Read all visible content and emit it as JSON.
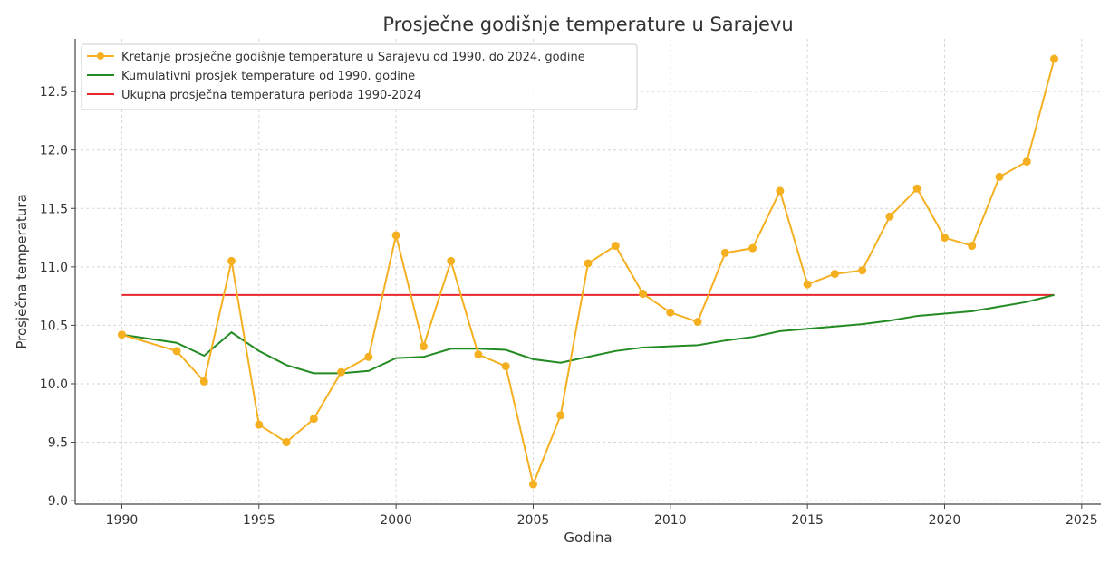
{
  "chart_data": {
    "type": "line",
    "title": "Prosječne godišnje temperature u Sarajevu",
    "xlabel": "Godina",
    "ylabel": "Prosječna temperatura",
    "xlim": [
      1988.3,
      2025.7
    ],
    "ylim": [
      8.97,
      12.95
    ],
    "xticks": [
      "1990",
      "1995",
      "2000",
      "2005",
      "2010",
      "2015",
      "2020",
      "2025"
    ],
    "yticks": [
      "9.0",
      "9.5",
      "10.0",
      "10.5",
      "11.0",
      "11.5",
      "12.0",
      "12.5"
    ],
    "grid": true,
    "legend_position": "top-left",
    "x": [
      1990,
      1992,
      1993,
      1994,
      1995,
      1996,
      1997,
      1998,
      1999,
      2000,
      2001,
      2002,
      2003,
      2004,
      2005,
      2006,
      2007,
      2008,
      2009,
      2010,
      2011,
      2012,
      2013,
      2014,
      2015,
      2016,
      2017,
      2018,
      2019,
      2020,
      2021,
      2022,
      2023,
      2024
    ],
    "series": [
      {
        "name": "Kretanje prosječne godišnje temperature u Sarajevu od 1990. do 2024. godine",
        "color": "#f5b021",
        "markers": true,
        "values": [
          10.42,
          10.28,
          10.02,
          11.05,
          9.65,
          9.5,
          9.7,
          10.1,
          10.23,
          11.27,
          10.32,
          11.05,
          10.25,
          10.15,
          9.14,
          9.73,
          11.03,
          11.18,
          10.77,
          10.61,
          10.53,
          11.12,
          11.16,
          11.65,
          10.85,
          10.94,
          10.97,
          11.43,
          11.67,
          11.25,
          11.18,
          11.77,
          11.9,
          12.78
        ]
      },
      {
        "name": "Kumulativni prosjek temperature od 1990. godine",
        "color": "#228b22",
        "markers": false,
        "values": [
          10.42,
          10.35,
          10.24,
          10.44,
          10.28,
          10.16,
          10.09,
          10.09,
          10.11,
          10.22,
          10.23,
          10.3,
          10.3,
          10.29,
          10.21,
          10.18,
          10.23,
          10.28,
          10.31,
          10.32,
          10.33,
          10.37,
          10.4,
          10.45,
          10.47,
          10.49,
          10.51,
          10.54,
          10.58,
          10.6,
          10.62,
          10.66,
          10.7,
          10.76
        ]
      },
      {
        "name": "Ukupna prosječna temperatura perioda 1990-2024",
        "color": "#e8262b",
        "markers": false,
        "values": [
          10.76,
          10.76,
          10.76,
          10.76,
          10.76,
          10.76,
          10.76,
          10.76,
          10.76,
          10.76,
          10.76,
          10.76,
          10.76,
          10.76,
          10.76,
          10.76,
          10.76,
          10.76,
          10.76,
          10.76,
          10.76,
          10.76,
          10.76,
          10.76,
          10.76,
          10.76,
          10.76,
          10.76,
          10.76,
          10.76,
          10.76,
          10.76,
          10.76,
          10.76
        ]
      }
    ]
  }
}
